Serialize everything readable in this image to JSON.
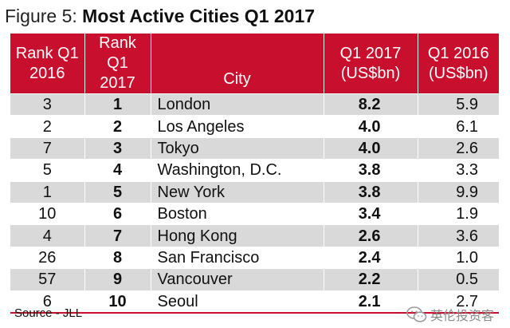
{
  "figure": {
    "prefix": "Figure 5: ",
    "title": "Most Active Cities Q1 2017"
  },
  "chart_data": {
    "type": "table",
    "title": "Most Active Cities Q1 2017",
    "columns": [
      "Rank Q1 2016",
      "Rank Q1 2017",
      "City",
      "Q1 2017 (US$bn)",
      "Q1 2016 (US$bn)"
    ],
    "header_lines": [
      [
        "Rank Q1",
        "2016"
      ],
      [
        "Rank Q1",
        "2017"
      ],
      [
        "City"
      ],
      [
        "Q1 2017",
        "(US$bn)"
      ],
      [
        "Q1 2016",
        "(US$bn)"
      ]
    ],
    "rows": [
      {
        "rank_2016": "3",
        "rank_2017": "1",
        "city": "London",
        "q1_2017": "8.2",
        "q1_2016": "5.9"
      },
      {
        "rank_2016": "2",
        "rank_2017": "2",
        "city": "Los Angeles",
        "q1_2017": "4.0",
        "q1_2016": "6.1"
      },
      {
        "rank_2016": "7",
        "rank_2017": "3",
        "city": "Tokyo",
        "q1_2017": "4.0",
        "q1_2016": "2.6"
      },
      {
        "rank_2016": "5",
        "rank_2017": "4",
        "city": "Washington, D.C.",
        "q1_2017": "3.8",
        "q1_2016": "3.3"
      },
      {
        "rank_2016": "1",
        "rank_2017": "5",
        "city": "New York",
        "q1_2017": "3.8",
        "q1_2016": "9.9"
      },
      {
        "rank_2016": "10",
        "rank_2017": "6",
        "city": "Boston",
        "q1_2017": "3.4",
        "q1_2016": "1.9"
      },
      {
        "rank_2016": "4",
        "rank_2017": "7",
        "city": "Hong Kong",
        "q1_2017": "2.6",
        "q1_2016": "3.6"
      },
      {
        "rank_2016": "26",
        "rank_2017": "8",
        "city": "San Francisco",
        "q1_2017": "2.4",
        "q1_2016": "1.0"
      },
      {
        "rank_2016": "57",
        "rank_2017": "9",
        "city": "Vancouver",
        "q1_2017": "2.2",
        "q1_2016": "0.5"
      },
      {
        "rank_2016": "6",
        "rank_2017": "10",
        "city": "Seoul",
        "q1_2017": "2.1",
        "q1_2016": "2.7"
      }
    ]
  },
  "source": "Source - JLL",
  "watermark": {
    "text": "英伦投资客",
    "icon": "wechat-logo-icon"
  },
  "colors": {
    "header_bg": "#c8102e",
    "row_shade": "#d9d9d9"
  }
}
